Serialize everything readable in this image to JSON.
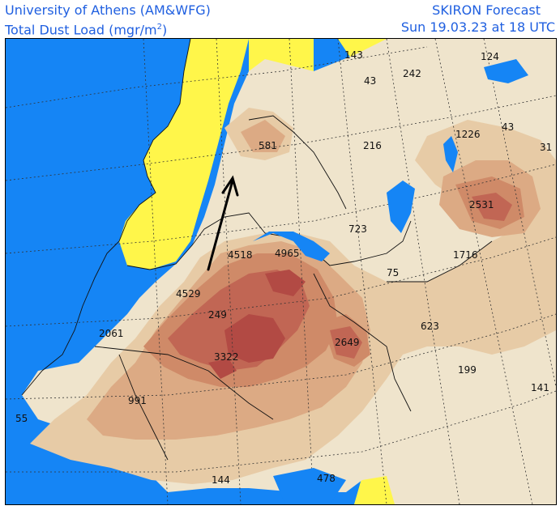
{
  "header": {
    "institution": "University of Athens (AM&WFG)",
    "product": "SKIRON Forecast",
    "variable": "Total Dust Load (mgr/m",
    "variable_exponent": "2",
    "variable_close": ")",
    "valid_time": "Sun 19.03.23 at 18 UTC"
  },
  "map": {
    "colors": {
      "sea": "#1585f5",
      "low_dust": "#fff64a",
      "level_1": "#efe4cc",
      "level_2": "#e7cba6",
      "level_3": "#dcaa84",
      "level_4": "#cf8a68",
      "level_5": "#c16654",
      "level_6": "#b24a44"
    },
    "value_labels": [
      "143",
      "124",
      "242",
      "43",
      "1226",
      "43",
      "31",
      "581",
      "216",
      "2531",
      "723",
      "4518",
      "4965",
      "75",
      "1716",
      "4529",
      "249",
      "2061",
      "623",
      "3322",
      "2649",
      "199",
      "141",
      "991",
      "55",
      "144",
      "478"
    ],
    "annotation": "arrow pointing north toward the western Alps"
  }
}
